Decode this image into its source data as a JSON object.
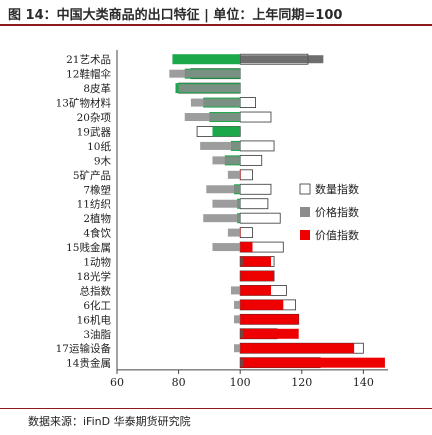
{
  "header": {
    "title": "图 14：中国大类商品的出口特征 | 单位：上年同期=100"
  },
  "footer": {
    "source": "数据来源：iFinD  华泰期货研究院"
  },
  "colors": {
    "quantity_fill": "#ffffff",
    "quantity_stroke": "#333333",
    "price": "#8c8c8c",
    "value_red": "#ee0000",
    "highlight_green": "#1aa84a",
    "overlap_dark": "#555555"
  },
  "chart_data": {
    "type": "bar",
    "orientation": "horizontal",
    "base": 100,
    "xlim": [
      60,
      148
    ],
    "xticks": [
      60,
      80,
      100,
      120,
      140
    ],
    "categories": [
      "21艺术品",
      "12鞋帽伞",
      "8皮革",
      "13矿物材料",
      "20杂项",
      "19武器",
      "10纸",
      "9木",
      "5矿产品",
      "7橡塑",
      "11纺织",
      "2植物",
      "4食饮",
      "15贱金属",
      "1动物",
      "18光学",
      "总指数",
      "6化工",
      "16机电",
      "3油脂",
      "17运输设备",
      "14贵金属"
    ],
    "series": [
      {
        "name": "数量指数",
        "values": [
          122,
          84,
          80,
          105,
          110,
          86,
          111,
          107,
          104,
          110,
          109,
          113,
          104,
          114,
          111,
          111,
          115,
          118,
          119,
          112,
          140,
          126
        ]
      },
      {
        "name": "价格指数",
        "values": [
          127,
          77,
          80,
          84,
          82,
          100,
          87,
          91,
          96,
          89,
          91,
          88,
          96,
          91,
          101,
          100,
          97,
          98,
          98,
          101,
          98,
          101
        ]
      },
      {
        "name": "价值指数",
        "values": [
          78,
          82,
          79,
          88,
          90,
          91,
          97,
          95,
          100,
          98,
          99,
          99,
          100,
          104,
          110,
          111,
          110,
          114,
          119,
          119,
          137,
          147
        ]
      }
    ],
    "legend_position": "right"
  }
}
